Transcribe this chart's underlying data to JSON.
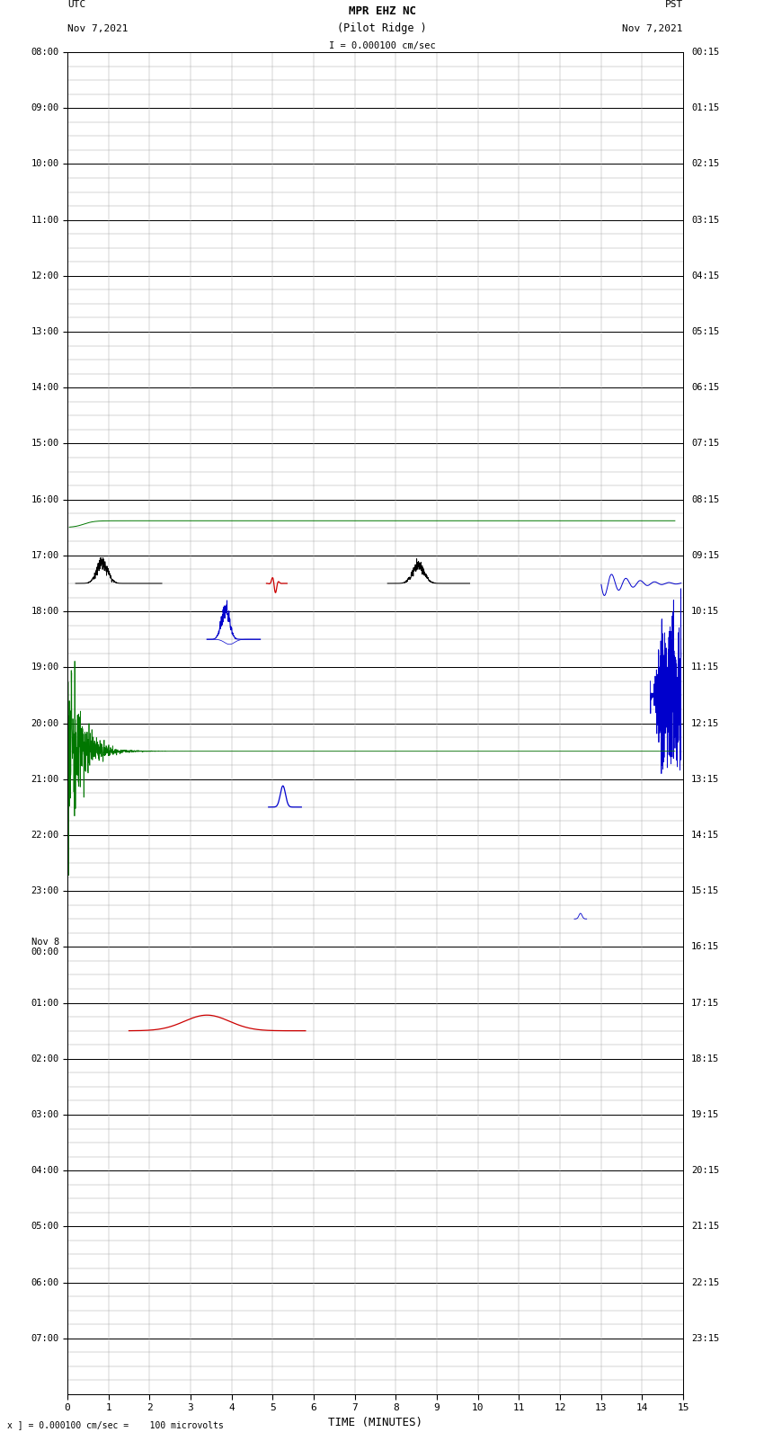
{
  "title_line1": "MPR EHZ NC",
  "title_line2": "(Pilot Ridge )",
  "scale_text": "I = 0.000100 cm/sec",
  "label_left_top": "UTC",
  "label_left_date": "Nov 7,2021",
  "label_right_top": "PST",
  "label_right_date": "Nov 7,2021",
  "footer_text": "x ] = 0.000100 cm/sec =    100 microvolts",
  "xlabel": "TIME (MINUTES)",
  "utc_times": [
    "08:00",
    "09:00",
    "10:00",
    "11:00",
    "12:00",
    "13:00",
    "14:00",
    "15:00",
    "16:00",
    "17:00",
    "18:00",
    "19:00",
    "20:00",
    "21:00",
    "22:00",
    "23:00",
    "Nov 8\n00:00",
    "01:00",
    "02:00",
    "03:00",
    "04:00",
    "05:00",
    "06:00",
    "07:00"
  ],
  "pst_times": [
    "00:15",
    "01:15",
    "02:15",
    "03:15",
    "04:15",
    "05:15",
    "06:15",
    "07:15",
    "08:15",
    "09:15",
    "10:15",
    "11:15",
    "12:15",
    "13:15",
    "14:15",
    "15:15",
    "16:15",
    "17:15",
    "18:15",
    "19:15",
    "20:15",
    "21:15",
    "22:15",
    "23:15"
  ],
  "n_rows": 24,
  "minutes_per_row": 15,
  "bg_color": "#ffffff",
  "grid_major_color": "#000000",
  "grid_minor_color": "#aaaaaa"
}
